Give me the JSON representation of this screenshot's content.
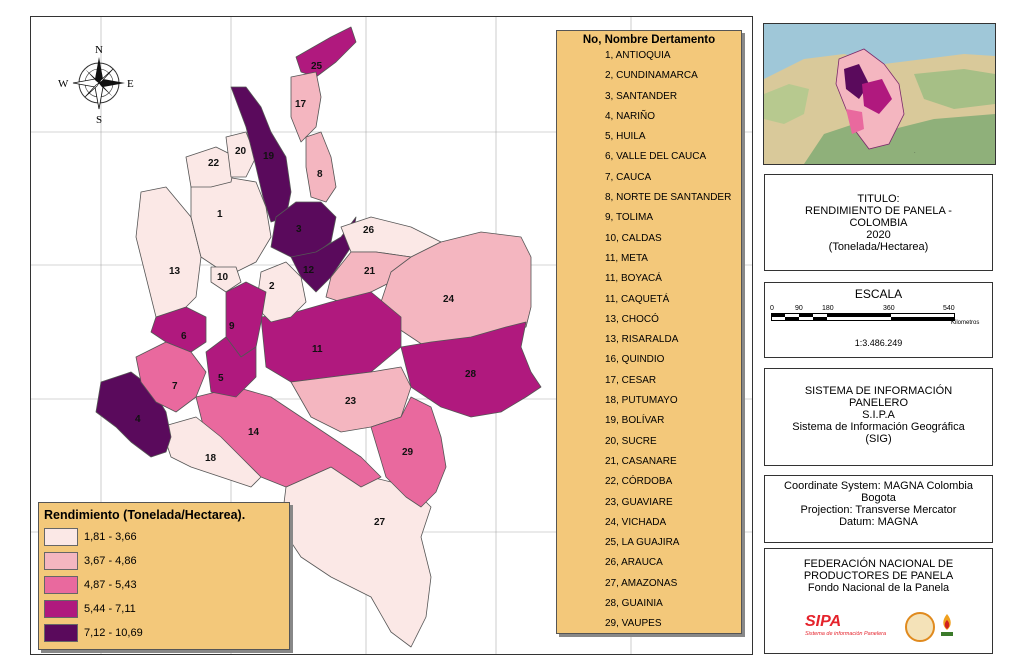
{
  "compass": {
    "n": "N",
    "s": "S",
    "e": "E",
    "w": "W"
  },
  "department_legend": {
    "title": "No, Nombre Dertamento",
    "items": [
      "1, ANTIOQUIA",
      "2, CUNDINAMARCA",
      "3, SANTANDER",
      "4, NARIÑO",
      "5, HUILA",
      "6, VALLE DEL CAUCA",
      "7, CAUCA",
      "8, NORTE DE SANTANDER",
      "9, TOLIMA",
      "10, CALDAS",
      "11, META",
      "11, BOYACÁ",
      "11, CAQUETÁ",
      "13, CHOCÓ",
      "13, RISARALDA",
      "16, QUINDIO",
      "17, CESAR",
      "18, PUTUMAYO",
      "19, BOLÍVAR",
      "20, SUCRE",
      "21, CASANARE",
      "22, CÓRDOBA",
      "23, GUAVIARE",
      "24, VICHADA",
      "25, LA GUAJIRA",
      "26, ARAUCA",
      "27, AMAZONAS",
      "28, GUAINIA",
      "29, VAUPES"
    ]
  },
  "rendimiento_legend": {
    "title": "Rendimiento (Tonelada/Hectarea).",
    "classes": [
      {
        "label": "1,81 - 3,66",
        "color": "#fbe8e6"
      },
      {
        "label": "3,67 - 4,86",
        "color": "#f4b6c0"
      },
      {
        "label": "4,87 - 5,43",
        "color": "#e9699e"
      },
      {
        "label": "5,44 - 7,11",
        "color": "#b0197e"
      },
      {
        "label": "7,12 - 10,69",
        "color": "#5a0a5c"
      }
    ]
  },
  "map_labels": {
    "d1": "1",
    "d2": "2",
    "d3": "3",
    "d4": "4",
    "d5": "5",
    "d6": "6",
    "d7": "7",
    "d8": "8",
    "d9": "9",
    "d10": "10",
    "d11": "11",
    "d12": "12",
    "d13": "13",
    "d14": "14",
    "d17": "17",
    "d18": "18",
    "d19": "19",
    "d20": "20",
    "d21": "21",
    "d22": "22",
    "d23": "23",
    "d24": "24",
    "d25": "25",
    "d26": "26",
    "d27": "27",
    "d28": "28",
    "d29": "29"
  },
  "title_panel": {
    "line1": "TITULO:",
    "line2": "RENDIMIENTO DE PANELA -",
    "line3": "COLOMBIA",
    "line4": "2020",
    "line5": "(Tonelada/Hectarea)"
  },
  "scale_panel": {
    "title": "ESCALA",
    "ticks": [
      "0",
      "90",
      "180",
      "360",
      "540"
    ],
    "unit": "Kilometros",
    "ratio": "1:3.486.249"
  },
  "system_panel": {
    "line1": "SISTEMA DE INFORMACIÓN",
    "line2": "PANELERO",
    "line3": "S.I.P.A",
    "line4": "Sistema de Información Geográfica",
    "line5": "(SIG)"
  },
  "coord_panel": {
    "line1": "Coordinate System: MAGNA Colombia",
    "line2": "Bogota",
    "line3": "Projection: Transverse Mercator",
    "line4": "Datum: MAGNA"
  },
  "federation_panel": {
    "line1": "FEDERACIÓN NACIONAL DE",
    "line2": "PRODUCTORES DE PANELA",
    "line3": "Fondo Nacional de la Panela",
    "logo_text": "SIPA",
    "logo_sub": "Sistema de información Panelera"
  }
}
